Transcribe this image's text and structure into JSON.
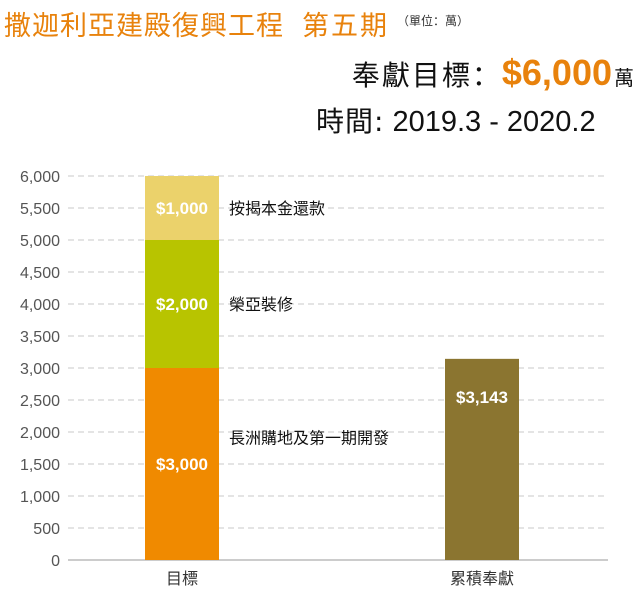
{
  "header": {
    "title": "撒迦利亞建殿復興工程",
    "phase": "第五期",
    "unit": "（單位：萬）",
    "target_label": "奉獻目標：",
    "target_value": "$6,000",
    "target_unit": "萬",
    "period_label": "時間:",
    "period_value": "2019.3 - 2020.2"
  },
  "colors": {
    "accent": "#e8820c",
    "phase_1": "#f08a00",
    "phase_2": "#b8c400",
    "phase_3": "#ebd26b",
    "accumulated": "#8b7530",
    "grid": "#c8c8c8",
    "axis_text": "#555555"
  },
  "chart_data": {
    "type": "bar",
    "stacked": true,
    "categories": [
      "目標",
      "累積奉獻"
    ],
    "ylim": [
      0,
      6000
    ],
    "yticks": [
      0,
      500,
      1000,
      1500,
      2000,
      2500,
      3000,
      3500,
      4000,
      4500,
      5000,
      5500,
      6000
    ],
    "ytick_labels": [
      "0",
      "500",
      "1,000",
      "1,500",
      "2,000",
      "2,500",
      "3,000",
      "3,500",
      "4,000",
      "4,500",
      "5,000",
      "5,500",
      "6,000"
    ],
    "grid": true,
    "segments": [
      {
        "category": "目標",
        "value": 3000,
        "value_label": "$3,000",
        "label": "長洲購地及第一期開發",
        "color": "#f08a00"
      },
      {
        "category": "目標",
        "value": 2000,
        "value_label": "$2,000",
        "label": "榮亞裝修",
        "color": "#b8c400"
      },
      {
        "category": "目標",
        "value": 1000,
        "value_label": "$1,000",
        "label": "按揭本金還款",
        "color": "#ebd26b"
      },
      {
        "category": "累積奉獻",
        "value": 3143,
        "value_label": "$3,143",
        "label": "",
        "color": "#8b7530"
      }
    ]
  }
}
